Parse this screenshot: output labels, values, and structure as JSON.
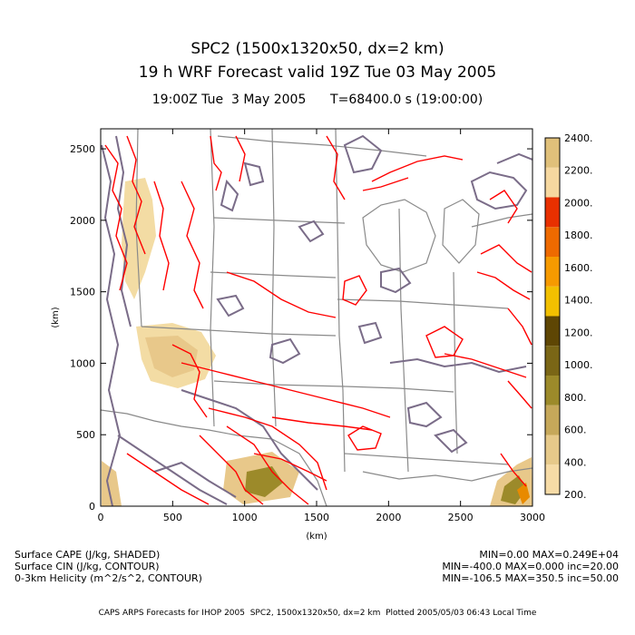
{
  "title": {
    "line1": "SPC2 (1500x1320x50, dx=2 km)",
    "line2": "19 h WRF Forecast valid 19Z Tue 03 May 2005",
    "subtitle": "19:00Z Tue  3 May 2005      T=68400.0 s (19:00:00)"
  },
  "axes": {
    "xlabel": "(km)",
    "ylabel": "(km)",
    "x_ticks": [
      "0",
      "500",
      "1000",
      "1500",
      "2000",
      "2500",
      "3000"
    ],
    "y_ticks": [
      "0",
      "500",
      "1000",
      "1500",
      "2000",
      "2500"
    ],
    "x_range": [
      0,
      3000
    ],
    "y_range": [
      0,
      2640
    ]
  },
  "colorbar": {
    "labels": [
      "200.",
      "400.",
      "600.",
      "800.",
      "1000.",
      "1200.",
      "1400.",
      "1600.",
      "1800.",
      "2000.",
      "2200.",
      "2400."
    ],
    "colors": [
      "#f6dba6",
      "#e6c98a",
      "#c6a85a",
      "#9c8a2a",
      "#7a6616",
      "#5e4604",
      "#f2c000",
      "#f69a00",
      "#ee6a00",
      "#e83000",
      "#f6d8a0",
      "#e0c07a"
    ]
  },
  "map_colors": {
    "cape_light": "#f3dca4",
    "cape_mid": "#e8c88a",
    "cape_olive": "#9c8a2a",
    "cape_orange": "#e88a00",
    "cin_contour": "#ff0000",
    "boundaries": "#8a8a8a",
    "helicity_contour": "#7a6c88"
  },
  "info": {
    "left": [
      "Surface CAPE (J/kg, SHADED)",
      "Surface CIN (J/kg, CONTOUR)",
      "0-3km Helicity (m^2/s^2, CONTOUR)"
    ],
    "right": [
      "MIN=0.00 MAX=0.249E+04",
      "MIN=-400.0 MAX=0.000 inc=20.00",
      "MIN=-106.5 MAX=350.5 inc=50.00"
    ]
  },
  "footer": "CAPS ARPS Forecasts for IHOP 2005  SPC2, 1500x1320x50, dx=2 km  Plotted 2005/05/03 06:43 Local Time"
}
